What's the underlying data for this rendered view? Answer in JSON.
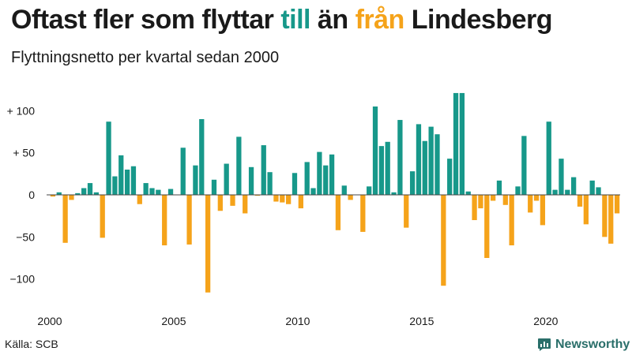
{
  "title": {
    "part1": "Oftast fler som flyttar ",
    "pos_word": "till",
    "part2": " än ",
    "neg_word": "från",
    "part3": " Lindesberg"
  },
  "subtitle": "Flyttningsnetto per kvartal sedan 2000",
  "source": "Källa: SCB",
  "brand": "Newsworthy",
  "colors": {
    "positive": "#17988a",
    "negative": "#f5a31a",
    "zero_line": "#444444"
  },
  "chart_data": {
    "type": "bar",
    "title": "Oftast fler som flyttar till än från Lindesberg",
    "subtitle": "Flyttningsnetto per kvartal sedan 2000",
    "x_start": 2000,
    "quarters_per_year": 4,
    "x_ticks": [
      "2000",
      "2005",
      "2010",
      "2015",
      "2020"
    ],
    "y_ticks": [
      {
        "value": 100,
        "label": "+ 100"
      },
      {
        "value": 50,
        "label": "+  50"
      },
      {
        "value": 0,
        "label": "0"
      },
      {
        "value": -50,
        "label": "−50"
      },
      {
        "value": -100,
        "label": "−100"
      }
    ],
    "ylim": [
      -120,
      125
    ],
    "values": [
      -2,
      3,
      -57,
      -6,
      2,
      8,
      14,
      3,
      -51,
      87,
      22,
      47,
      30,
      34,
      -11,
      14,
      8,
      6,
      -60,
      7,
      0,
      56,
      -59,
      35,
      90,
      -116,
      18,
      -19,
      37,
      -13,
      69,
      -22,
      33,
      -1,
      59,
      27,
      -8,
      -9,
      -11,
      26,
      -16,
      39,
      8,
      51,
      35,
      48,
      -42,
      11,
      -6,
      0,
      -44,
      10,
      105,
      58,
      63,
      3,
      89,
      -39,
      28,
      84,
      64,
      81,
      72,
      -108,
      43,
      121,
      121,
      4,
      -30,
      -16,
      -75,
      -7,
      17,
      -12,
      -60,
      10,
      70,
      -21,
      -7,
      -36,
      87,
      6,
      43,
      6,
      21,
      -14,
      -35,
      17,
      9,
      -50,
      -58,
      -22
    ]
  }
}
